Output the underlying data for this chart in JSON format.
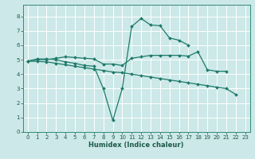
{
  "xlabel": "Humidex (Indice chaleur)",
  "bg_color": "#cce8e8",
  "grid_color": "#ffffff",
  "line_color": "#1e7a6a",
  "xlim": [
    -0.5,
    23.5
  ],
  "ylim": [
    0,
    8.8
  ],
  "xticks": [
    0,
    1,
    2,
    3,
    4,
    5,
    6,
    7,
    8,
    9,
    10,
    11,
    12,
    13,
    14,
    15,
    16,
    17,
    18,
    19,
    20,
    21,
    22,
    23
  ],
  "yticks": [
    0,
    1,
    2,
    3,
    4,
    5,
    6,
    7,
    8
  ],
  "line1_x": [
    0,
    1,
    2,
    3,
    4,
    5,
    6,
    7,
    8,
    9,
    10,
    11,
    12,
    13,
    14,
    15,
    16,
    17,
    18,
    19,
    20,
    21
  ],
  "line1_y": [
    4.9,
    5.0,
    5.0,
    5.1,
    5.2,
    5.15,
    5.1,
    5.05,
    4.7,
    4.7,
    4.6,
    5.1,
    5.2,
    5.3,
    5.3,
    5.3,
    5.3,
    5.25,
    5.55,
    4.3,
    4.2,
    4.2
  ],
  "line2_x": [
    0,
    1,
    2,
    3,
    4,
    5,
    6,
    7,
    8,
    9,
    10,
    11,
    12,
    13,
    14,
    15,
    16,
    17
  ],
  "line2_y": [
    4.9,
    5.05,
    5.05,
    5.0,
    4.85,
    4.75,
    4.6,
    4.55,
    3.0,
    0.8,
    3.0,
    7.3,
    7.85,
    7.4,
    7.35,
    6.5,
    6.35,
    6.0
  ],
  "line3_x": [
    0,
    1,
    2,
    3,
    4,
    5,
    6,
    7,
    8,
    9,
    10,
    11,
    12,
    13,
    14,
    15,
    16,
    17,
    18,
    19,
    20,
    21,
    22
  ],
  "line3_y": [
    4.9,
    4.88,
    4.85,
    4.75,
    4.65,
    4.55,
    4.45,
    4.35,
    4.25,
    4.15,
    4.1,
    4.0,
    3.9,
    3.8,
    3.7,
    3.6,
    3.5,
    3.4,
    3.3,
    3.2,
    3.1,
    3.0,
    2.6
  ],
  "xlabel_fontsize": 6,
  "tick_fontsize": 5,
  "lw": 0.9,
  "markersize": 2.0
}
